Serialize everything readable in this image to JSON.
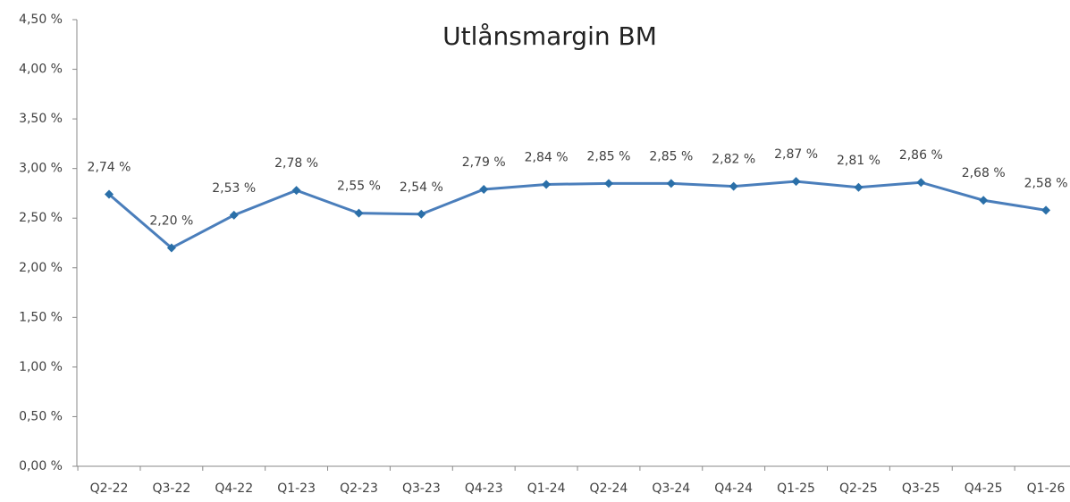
{
  "chart_data": {
    "type": "line",
    "title": "Utlånsmargin BM",
    "categories": [
      "Q2-22",
      "Q3-22",
      "Q4-22",
      "Q1-23",
      "Q2-23",
      "Q3-23",
      "Q4-23",
      "Q1-24",
      "Q2-24",
      "Q3-24",
      "Q4-24",
      "Q1-25",
      "Q2-25",
      "Q3-25",
      "Q4-25",
      "Q1-26"
    ],
    "series": [
      {
        "name": "Utlånsmargin BM",
        "color": "#4a7ebb",
        "marker_color": "#2a6fa8",
        "values": [
          2.74,
          2.2,
          2.53,
          2.78,
          2.55,
          2.54,
          2.79,
          2.84,
          2.85,
          2.85,
          2.82,
          2.87,
          2.81,
          2.86,
          2.68,
          2.58
        ],
        "value_labels": [
          "2,74 %",
          "2,20 %",
          "2,53 %",
          "2,78 %",
          "2,55 %",
          "2,54 %",
          "2,79 %",
          "2,84 %",
          "2,85 %",
          "2,85 %",
          "2,82 %",
          "2,87 %",
          "2,81 %",
          "2,86 %",
          "2,68 %",
          "2,58 %"
        ]
      }
    ],
    "ylim": [
      0,
      4.5
    ],
    "yticks": [
      {
        "value": 0,
        "label": "0,00 %"
      },
      {
        "value": 0.5,
        "label": "0,50 %"
      },
      {
        "value": 1,
        "label": "1,00 %"
      },
      {
        "value": 1.5,
        "label": "1,50 %"
      },
      {
        "value": 2,
        "label": "2,00 %"
      },
      {
        "value": 2.5,
        "label": "2,50 %"
      },
      {
        "value": 3,
        "label": "3,00 %"
      },
      {
        "value": 3.5,
        "label": "3,50 %"
      },
      {
        "value": 4,
        "label": "4,00 %"
      },
      {
        "value": 4.5,
        "label": "4,50 %"
      }
    ],
    "grid": false
  }
}
